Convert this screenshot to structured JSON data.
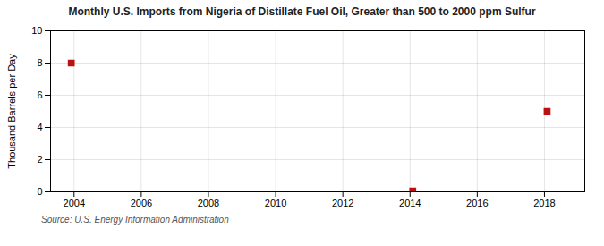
{
  "chart_data": {
    "type": "scatter",
    "title": "Monthly U.S. Imports from Nigeria of Distillate Fuel Oil, Greater than 500 to 2000 ppm Sulfur",
    "ylabel": "Thousand Barrels per Day",
    "source": "Source: U.S. Energy Information Administration",
    "x": [
      2003.917,
      2014.08,
      2018.08
    ],
    "values": [
      8.0,
      0.05,
      5.0
    ],
    "color": "#bb1111",
    "marker": "square",
    "xlim": [
      2003.3,
      2019.2
    ],
    "xticks": [
      2004,
      2006,
      2008,
      2010,
      2012,
      2014,
      2016,
      2018
    ],
    "ylim": [
      0,
      10
    ],
    "yticks": [
      0,
      2,
      4,
      6,
      8,
      10
    ],
    "grid": true
  }
}
